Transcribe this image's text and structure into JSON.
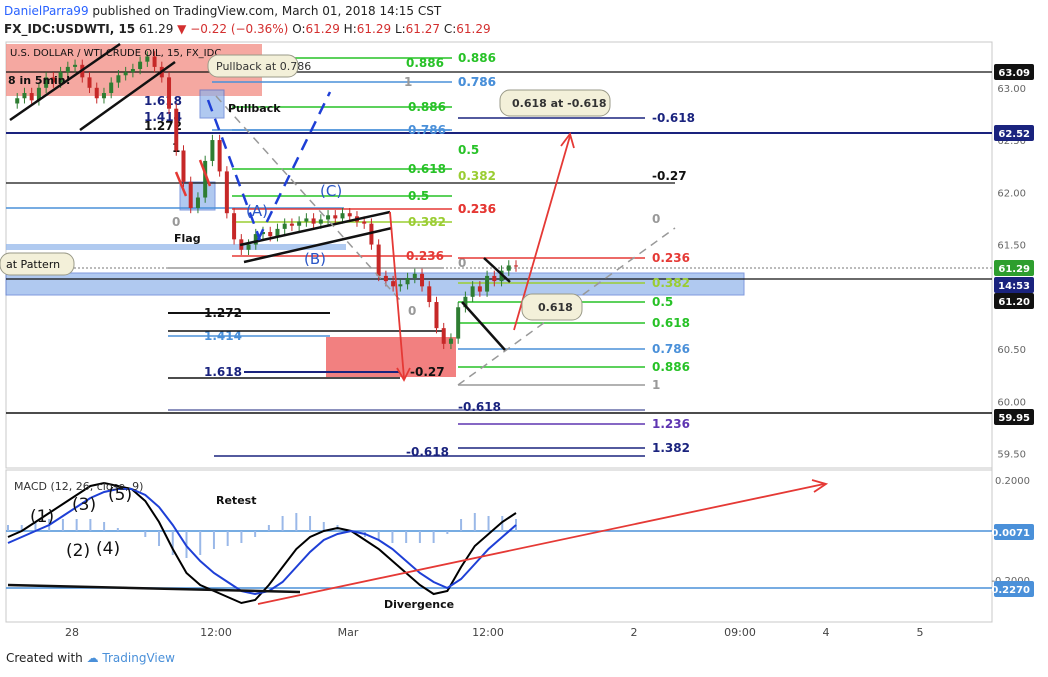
{
  "header": {
    "author": "DanielParra99",
    "published_text": "published on TradingView.com, March 01, 2018 14:15 CST",
    "symbol_line": "FX_IDC:USDWTI, 15",
    "price": "61.29",
    "change_arrow": "▼",
    "change": "−0.22 (−0.36%)",
    "o_label": "O:",
    "o_value": "61.29",
    "h_label": "H:",
    "h_value": "61.29",
    "l_label": "L:",
    "l_value": "61.27",
    "c_label": "C:",
    "c_value": "61.29"
  },
  "footer": {
    "created_with": "Created with",
    "brand": "TradingView"
  },
  "colors": {
    "candle": "#2e7d32",
    "fib_green": "#27c227",
    "fib_blue": "#4a90d9",
    "fib_olive": "#9acd32",
    "fib_red": "#e53935",
    "fib_navy": "#1a237e",
    "arrow": "#e53935",
    "macd": "#000000",
    "signal": "#1e3fd6",
    "axis_badge": "#1a237e",
    "price_badge": "#2e9e2e"
  },
  "chart_data": {
    "type": "line",
    "title": "U.S. DOLLAR / WTI CRUDE OIL, 15, FX_IDC",
    "price_axis": {
      "ticks": [
        "63.00",
        "62.50",
        "62.00",
        "61.50",
        "61.00",
        "60.50",
        "60.00",
        "59.50"
      ],
      "range": [
        59.4,
        63.4
      ],
      "badges": [
        {
          "label": "63.09",
          "kind": "line"
        },
        {
          "label": "62.52",
          "kind": "blue"
        },
        {
          "label": "61.29",
          "kind": "green"
        },
        {
          "label": "14:53",
          "kind": "navy"
        },
        {
          "label": "61.20",
          "kind": "line"
        },
        {
          "label": "59.95",
          "kind": "line"
        }
      ]
    },
    "time_axis": {
      "ticks": [
        "28",
        "12:00",
        "Mar",
        "12:00",
        "2",
        "09:00",
        "4",
        "5"
      ]
    },
    "price_series": [
      62.85,
      62.9,
      62.95,
      62.88,
      63.0,
      63.1,
      63.05,
      63.15,
      63.2,
      63.22,
      63.1,
      63.0,
      62.9,
      62.95,
      63.05,
      63.12,
      63.15,
      63.18,
      63.25,
      63.3,
      63.2,
      63.1,
      62.8,
      62.4,
      62.1,
      61.85,
      61.95,
      62.3,
      62.5,
      62.2,
      61.8,
      61.55,
      61.45,
      61.5,
      61.6,
      61.62,
      61.58,
      61.65,
      61.7,
      61.68,
      61.72,
      61.75,
      61.7,
      61.74,
      61.78,
      61.75,
      61.8,
      61.77,
      61.72,
      61.7,
      61.5,
      61.2,
      61.15,
      61.1,
      61.12,
      61.18,
      61.22,
      61.1,
      60.95,
      60.7,
      60.55,
      60.6,
      60.9,
      61.0,
      61.1,
      61.05,
      61.2,
      61.15,
      61.25,
      61.3,
      61.29
    ],
    "series": [
      {
        "name": "MACD (12, 26, close, 9)",
        "values": [
          -0.02,
          0.0,
          0.03,
          0.06,
          0.09,
          0.12,
          0.15,
          0.16,
          0.15,
          0.14,
          0.1,
          0.03,
          -0.06,
          -0.14,
          -0.18,
          -0.2,
          -0.22,
          -0.24,
          -0.23,
          -0.18,
          -0.12,
          -0.06,
          -0.02,
          0.0,
          0.01,
          0.0,
          -0.03,
          -0.06,
          -0.1,
          -0.14,
          -0.18,
          -0.21,
          -0.2,
          -0.12,
          -0.05,
          -0.01,
          0.03,
          0.06
        ]
      },
      {
        "name": "Signal",
        "values": [
          -0.04,
          -0.02,
          0.0,
          0.02,
          0.05,
          0.08,
          0.11,
          0.13,
          0.14,
          0.14,
          0.12,
          0.08,
          0.02,
          -0.05,
          -0.1,
          -0.14,
          -0.17,
          -0.2,
          -0.21,
          -0.2,
          -0.17,
          -0.12,
          -0.07,
          -0.03,
          -0.01,
          0.0,
          -0.01,
          -0.03,
          -0.06,
          -0.1,
          -0.14,
          -0.17,
          -0.19,
          -0.16,
          -0.11,
          -0.06,
          -0.02,
          0.02
        ]
      }
    ],
    "macd_axis": {
      "ticks": [
        "0.2000",
        "-0.2000"
      ],
      "badges": [
        "-0.0071",
        "-0.2270"
      ]
    },
    "fib_labels_a": [
      "0.886",
      "0.786",
      "0.886",
      "0.786",
      "0.618",
      "0.5",
      "0.382",
      "0.236",
      "0.236"
    ],
    "fib_labels_b": [
      "1",
      "0.786",
      "0.618",
      "0.5",
      "0.382",
      "0.236",
      "0.5",
      "0.618",
      "0.786",
      "0.886",
      "1",
      "-0.618",
      "1.236",
      "1.382",
      "-0.618",
      "0",
      "-0.618",
      "-0.27",
      "0"
    ],
    "fib_labels_c": [
      "1.272",
      "1.414",
      "1.618",
      "1.618",
      "1.414",
      "1.272",
      "-0.27",
      "1",
      "0",
      "0",
      "0.382",
      "0.5",
      "0.618",
      "0.786",
      "0.886"
    ],
    "callouts": [
      "Pullback at 0.786",
      "0.618 at -0.618",
      "0.618"
    ],
    "annotations": [
      "8 in 5min!",
      "Pullback",
      "Flag",
      "at Pattern",
      "(A)",
      "(B)",
      "(C)",
      "Retest",
      "Divergence",
      "(1)",
      "(2)",
      "(3)",
      "(4)",
      "(5)"
    ]
  }
}
